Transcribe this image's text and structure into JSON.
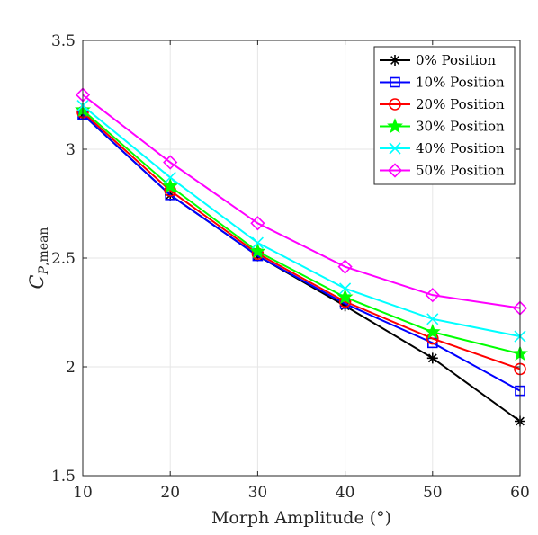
{
  "chart_data": {
    "type": "line",
    "x": [
      10,
      20,
      30,
      40,
      50,
      60
    ],
    "xlim": [
      10,
      60
    ],
    "ylim": [
      1.5,
      3.5
    ],
    "xticks": [
      "10",
      "20",
      "30",
      "40",
      "50",
      "60"
    ],
    "yticks": [
      "1.5",
      "2",
      "2.5",
      "3",
      "3.5"
    ],
    "xlabel": "Morph Amplitude (°)",
    "ylabel": {
      "main": "C",
      "sub1": "P",
      "sub2": ",mean"
    },
    "grid": true,
    "legend_position": "top-right",
    "series": [
      {
        "name": "0% Position",
        "color": "#000000",
        "marker": "asterisk",
        "values": [
          3.16,
          2.79,
          2.51,
          2.28,
          2.04,
          1.75
        ]
      },
      {
        "name": "10% Position",
        "color": "#0000ff",
        "marker": "square",
        "values": [
          3.16,
          2.79,
          2.51,
          2.29,
          2.11,
          1.89
        ]
      },
      {
        "name": "20% Position",
        "color": "#ff0000",
        "marker": "circle",
        "values": [
          3.17,
          2.81,
          2.52,
          2.3,
          2.13,
          1.99
        ]
      },
      {
        "name": "30% Position",
        "color": "#00ff00",
        "marker": "star",
        "values": [
          3.18,
          2.83,
          2.53,
          2.32,
          2.16,
          2.06
        ]
      },
      {
        "name": "40% Position",
        "color": "#00ffff",
        "marker": "x",
        "values": [
          3.2,
          2.87,
          2.57,
          2.36,
          2.22,
          2.14
        ]
      },
      {
        "name": "50% Position",
        "color": "#ff00ff",
        "marker": "diamond",
        "values": [
          3.25,
          2.94,
          2.66,
          2.46,
          2.33,
          2.27
        ]
      }
    ]
  }
}
